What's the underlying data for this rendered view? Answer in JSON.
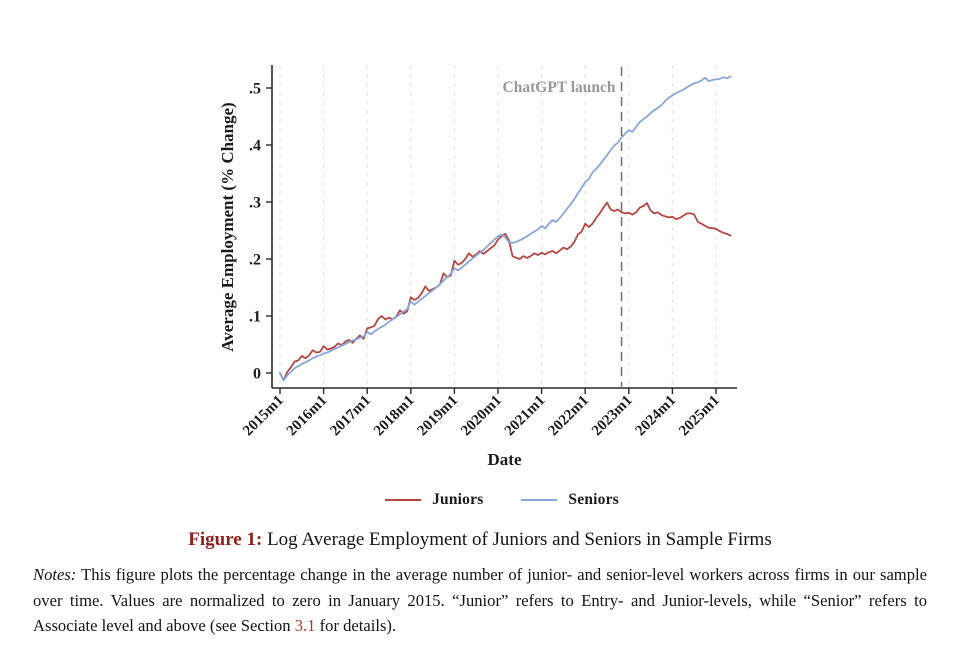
{
  "chart_data": {
    "type": "line",
    "title": "",
    "xlabel": "Date",
    "ylabel": "Average Employment (% Change)",
    "x_unit": "month",
    "x_start": "2015m1",
    "x_end": "2025m5",
    "x_tick_labels": [
      "2015m1",
      "2016m1",
      "2017m1",
      "2018m1",
      "2019m1",
      "2020m1",
      "2021m1",
      "2022m1",
      "2023m1",
      "2024m1",
      "2025m1"
    ],
    "y_ticks": [
      0,
      0.1,
      0.2,
      0.3,
      0.4,
      0.5
    ],
    "y_tick_labels": [
      "0",
      ".1",
      ".2",
      ".3",
      ".4",
      ".5"
    ],
    "ylim": [
      -0.03,
      0.54
    ],
    "grid": "vertical-dashed",
    "legend_position": "bottom",
    "annotation": {
      "label": "ChatGPT launch",
      "x": "2022m11",
      "style": "vertical-dashed-line"
    },
    "series": [
      {
        "name": "Juniors",
        "color": "#b34742",
        "values": [
          0.0,
          -0.013,
          0.002,
          0.01,
          0.02,
          0.022,
          0.03,
          0.026,
          0.031,
          0.04,
          0.036,
          0.037,
          0.047,
          0.041,
          0.043,
          0.046,
          0.052,
          0.049,
          0.055,
          0.058,
          0.053,
          0.06,
          0.066,
          0.06,
          0.078,
          0.08,
          0.083,
          0.095,
          0.1,
          0.094,
          0.097,
          0.094,
          0.099,
          0.11,
          0.104,
          0.108,
          0.133,
          0.128,
          0.132,
          0.14,
          0.152,
          0.144,
          0.147,
          0.15,
          0.155,
          0.175,
          0.168,
          0.171,
          0.197,
          0.19,
          0.193,
          0.2,
          0.21,
          0.204,
          0.208,
          0.214,
          0.209,
          0.214,
          0.219,
          0.224,
          0.234,
          0.24,
          0.244,
          0.233,
          0.205,
          0.202,
          0.2,
          0.205,
          0.202,
          0.205,
          0.21,
          0.207,
          0.211,
          0.208,
          0.212,
          0.214,
          0.21,
          0.215,
          0.22,
          0.217,
          0.222,
          0.23,
          0.243,
          0.248,
          0.262,
          0.256,
          0.262,
          0.272,
          0.28,
          0.29,
          0.299,
          0.287,
          0.284,
          0.287,
          0.282,
          0.28,
          0.281,
          0.278,
          0.282,
          0.29,
          0.293,
          0.298,
          0.285,
          0.28,
          0.282,
          0.277,
          0.275,
          0.273,
          0.274,
          0.27,
          0.272,
          0.276,
          0.28,
          0.28,
          0.278,
          0.265,
          0.262,
          0.258,
          0.255,
          0.254,
          0.253,
          0.249,
          0.246,
          0.244,
          0.241
        ]
      },
      {
        "name": "Seniors",
        "color": "#88a6d8",
        "values": [
          0.0,
          -0.013,
          -0.004,
          0.002,
          0.008,
          0.012,
          0.016,
          0.019,
          0.022,
          0.026,
          0.029,
          0.031,
          0.034,
          0.036,
          0.039,
          0.042,
          0.045,
          0.048,
          0.051,
          0.054,
          0.057,
          0.059,
          0.062,
          0.064,
          0.072,
          0.068,
          0.073,
          0.077,
          0.081,
          0.085,
          0.09,
          0.094,
          0.098,
          0.103,
          0.108,
          0.112,
          0.126,
          0.12,
          0.125,
          0.13,
          0.135,
          0.14,
          0.145,
          0.15,
          0.156,
          0.162,
          0.168,
          0.174,
          0.184,
          0.18,
          0.185,
          0.19,
          0.196,
          0.201,
          0.206,
          0.211,
          0.216,
          0.222,
          0.228,
          0.234,
          0.24,
          0.243,
          0.238,
          0.23,
          0.228,
          0.23,
          0.233,
          0.236,
          0.24,
          0.244,
          0.248,
          0.252,
          0.258,
          0.254,
          0.262,
          0.268,
          0.265,
          0.272,
          0.28,
          0.288,
          0.296,
          0.305,
          0.315,
          0.325,
          0.335,
          0.34,
          0.352,
          0.358,
          0.365,
          0.374,
          0.382,
          0.391,
          0.399,
          0.404,
          0.413,
          0.42,
          0.426,
          0.423,
          0.432,
          0.44,
          0.445,
          0.45,
          0.456,
          0.461,
          0.465,
          0.47,
          0.477,
          0.483,
          0.487,
          0.491,
          0.494,
          0.497,
          0.501,
          0.505,
          0.508,
          0.51,
          0.513,
          0.518,
          0.512,
          0.514,
          0.515,
          0.516,
          0.519,
          0.517,
          0.52
        ]
      }
    ]
  },
  "colors": {
    "grid": "#e4e4e4",
    "axis": "#2a2a2a",
    "annotation_line": "#6e6e6e",
    "annotation_text": "#989898",
    "caption_label": "#8e1f1f",
    "link": "#b13a2c"
  },
  "caption": {
    "label": "Figure 1:",
    "text": "Log Average Employment of Juniors and Seniors in Sample Firms"
  },
  "notes": {
    "label": "Notes:",
    "before_link": "This figure plots the percentage change in the average number of junior- and senior-level workers across firms in our sample over time.  Values are normalized to zero in January 2015.  “Junior” refers to Entry- and Junior-levels, while “Senior” refers to Associate level and above (see Section ",
    "link": "3.1",
    "after_link": " for details)."
  }
}
